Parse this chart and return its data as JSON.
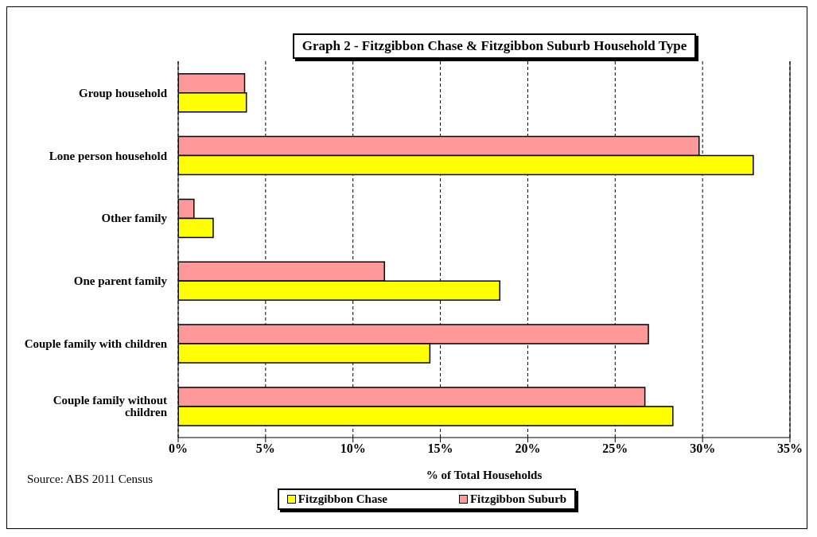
{
  "chart_data": {
    "type": "bar",
    "orientation": "horizontal",
    "title": "Graph 2 - Fitzgibbon Chase & Fitzgibbon Suburb Household Type",
    "xlabel": "% of Total Households",
    "categories": [
      "Group household",
      "Lone person household",
      "Other family",
      "One parent family",
      "Couple family with children",
      "Couple family without children"
    ],
    "series": [
      {
        "name": "Fitzgibbon Suburb",
        "color": "#ff9999",
        "values": [
          3.8,
          29.8,
          0.9,
          11.8,
          26.9,
          26.7
        ]
      },
      {
        "name": "Fitzgibbon Chase",
        "color": "#ffff00",
        "values": [
          3.9,
          32.9,
          2.0,
          18.4,
          14.4,
          28.3
        ]
      }
    ],
    "xlim": [
      0,
      35
    ],
    "xticks": [
      {
        "value": 0,
        "label": "0%"
      },
      {
        "value": 5,
        "label": "5%"
      },
      {
        "value": 10,
        "label": "10%"
      },
      {
        "value": 15,
        "label": "15%"
      },
      {
        "value": 20,
        "label": "20%"
      },
      {
        "value": 25,
        "label": "25%"
      },
      {
        "value": 30,
        "label": "30%"
      },
      {
        "value": 35,
        "label": "35%"
      }
    ],
    "grid": "x",
    "legend": "bottom",
    "annotations": [
      "Source: ABS 2011 Census"
    ]
  }
}
